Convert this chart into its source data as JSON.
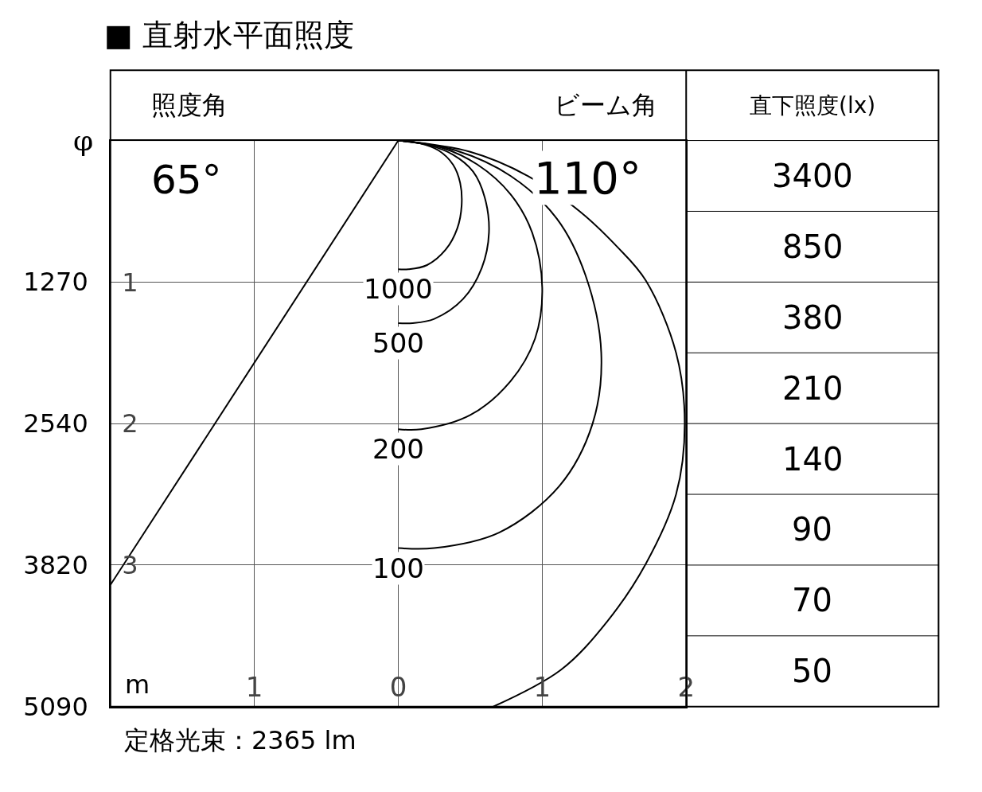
{
  "chart_data": [
    {
      "type": "line",
      "title": "■ 直射水平面照度",
      "xlabel": "m",
      "series": [
        {
          "name": "1000",
          "color": "#000000",
          "x": [
            0,
            0.15,
            0.28,
            0.38,
            0.43,
            0.44,
            0.41,
            0.33,
            0.2,
            0.07,
            0
          ],
          "values": [
            0,
            0.02,
            0.07,
            0.17,
            0.3,
            0.46,
            0.62,
            0.77,
            0.88,
            0.91,
            0.91
          ]
        },
        {
          "name": "500",
          "color": "#000000",
          "x": [
            0,
            0.2,
            0.38,
            0.52,
            0.6,
            0.63,
            0.58,
            0.45,
            0.25,
            0.1,
            0
          ],
          "values": [
            0,
            0.03,
            0.1,
            0.22,
            0.4,
            0.65,
            0.9,
            1.12,
            1.26,
            1.29,
            1.29
          ]
        },
        {
          "name": "200",
          "color": "#000000",
          "x": [
            0,
            0.3,
            0.55,
            0.78,
            0.93,
            1.0,
            0.95,
            0.78,
            0.5,
            0.16,
            0
          ],
          "values": [
            0,
            0.05,
            0.17,
            0.38,
            0.65,
            1.04,
            1.4,
            1.7,
            1.94,
            2.04,
            2.04
          ]
        },
        {
          "name": "100",
          "color": "#000000",
          "x": [
            0,
            0.4,
            0.78,
            1.1,
            1.3,
            1.41,
            1.35,
            1.12,
            0.7,
            0.25,
            0
          ],
          "values": [
            0,
            0.07,
            0.25,
            0.55,
            0.95,
            1.5,
            2.0,
            2.44,
            2.77,
            2.88,
            2.88
          ]
        },
        {
          "color": "#000000",
          "x": [
            0,
            0.5,
            0.9,
            1.26,
            1.52,
            1.72,
            1.93,
            1.99,
            1.93,
            1.72,
            1.45,
            1.13,
            0.66
          ],
          "values": [
            0,
            0.08,
            0.25,
            0.5,
            0.75,
            0.99,
            1.5,
            2.0,
            2.5,
            2.99,
            3.4,
            3.74,
            4.0
          ]
        },
        {
          "color": "#000000",
          "x": [
            0,
            -2
          ],
          "values": [
            0,
            3.14
          ]
        }
      ],
      "xlim": [
        -2,
        2
      ],
      "xticks": [
        {
          "value": -1,
          "label": "1"
        },
        0,
        1,
        2
      ],
      "ylim": [
        4,
        0
      ],
      "yticks": [
        1,
        2,
        3
      ],
      "y2label": "φ",
      "y2lim": [
        5090,
        0
      ],
      "y2ticks": [
        1270,
        2540,
        3820,
        5090
      ],
      "grid": true,
      "legend": false,
      "marker": "none",
      "line_style": "solid",
      "annotations": [
        "照度角",
        "65°",
        "ビーム角",
        "110°",
        "定格光束：2365 lm"
      ]
    },
    {
      "type": "other",
      "title": "直下照度(lx)",
      "annotations": [
        "3400",
        "850",
        "380",
        "210",
        "140",
        "90",
        "70",
        "50"
      ]
    }
  ]
}
